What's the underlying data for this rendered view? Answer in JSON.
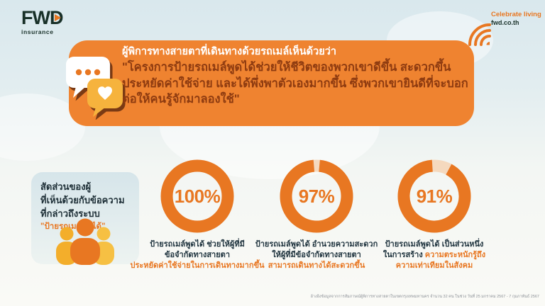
{
  "brand": {
    "logo_text": "FWD",
    "logo_sub": "insurance",
    "tagline": "Celebrate living",
    "website": "fwd.co.th",
    "colors": {
      "orange": "#E87722",
      "banner_orange": "#EF8330",
      "quote_dark": "#8E3B10",
      "dark_text": "#213540",
      "logo_dark": "#183028",
      "bubble_yellow": "#F6B33D",
      "bubble_shadow": "#7A3A14",
      "panel_blue": "#D6E5EA",
      "track_peach": "#F5D9BE"
    }
  },
  "banner": {
    "intro_line": "ผู้พิการทางสายตาที่เดินทางด้วยรถเมล์เห็นด้วยว่า",
    "quote_lines": [
      "\"โครงการป้ายรถเมล์พูดได้ช่วยให้ชีวิตของพวกเขาดีขึ้น สะดวกขึ้น",
      "ประหยัดค่าใช้จ่าย และได้พึ่งพาตัวเองมากขึ้น ซึ่งพวกเขายินดีที่จะบอก",
      "ต่อให้คนรู้จักมาลองใช้\""
    ]
  },
  "side_panel": {
    "lines": [
      "สัดส่วนของผู้",
      "ที่เห็นด้วยกับข้อความ",
      "ที่กล่าวถึงระบบ"
    ],
    "highlight": "\"ป้ายรถเมล์พูดได้\""
  },
  "chart_data": {
    "type": "pie",
    "variant": "donut-set",
    "title": "สัดส่วนของผู้ที่เห็นด้วยกับข้อความที่กล่าวถึงระบบ \"ป้ายรถเมล์พูดได้\"",
    "ring_color": "#E87722",
    "track_color": "#F5D9BE",
    "donuts": [
      {
        "value": 100,
        "label": "100%",
        "gap_center_deg": 0,
        "caption": [
          [
            {
              "t": "ป้ายรถเมล์พูดได้ ช่วยให้ผู้ที่มี",
              "c": "dark"
            }
          ],
          [
            {
              "t": "ข้อจำกัดทางสายตา",
              "c": "dark"
            }
          ],
          [
            {
              "t": "ประหยัดค่าใช้จ่ายในการเดินทางมากขึ้น",
              "c": "orange"
            }
          ]
        ]
      },
      {
        "value": 97,
        "label": "97%",
        "gap_center_deg": 0,
        "caption": [
          [
            {
              "t": "ป้ายรถเมล์พูดได้ อำนวยความสะดวก",
              "c": "dark"
            }
          ],
          [
            {
              "t": "ให้ผู้ที่มีข้อจำกัดทางสายตา",
              "c": "dark"
            }
          ],
          [
            {
              "t": "สามารถเดินทางได้สะดวกขึ้น",
              "c": "orange"
            }
          ]
        ]
      },
      {
        "value": 91,
        "label": "91%",
        "gap_center_deg": 12,
        "caption": [
          [
            {
              "t": "ป้ายรถเมล์พูดได้ เป็นส่วนหนึ่ง",
              "c": "dark"
            }
          ],
          [
            {
              "t": "ในการสร้าง ",
              "c": "dark"
            },
            {
              "t": "ความตระหนักรู้ถึง",
              "c": "orange"
            }
          ],
          [
            {
              "t": "ความเท่าเทียมในสังคม",
              "c": "orange"
            }
          ]
        ]
      }
    ]
  },
  "footer": {
    "source": "อ้างอิงข้อมูลจากการสัมภาษณ์ผู้พิการทางสายตาในเขตกรุงเทพมหานคร จำนวน 32 คน ในช่วง วันที่ 25 มกราคม 2567 - 7 กุมภาพันธ์ 2567"
  }
}
